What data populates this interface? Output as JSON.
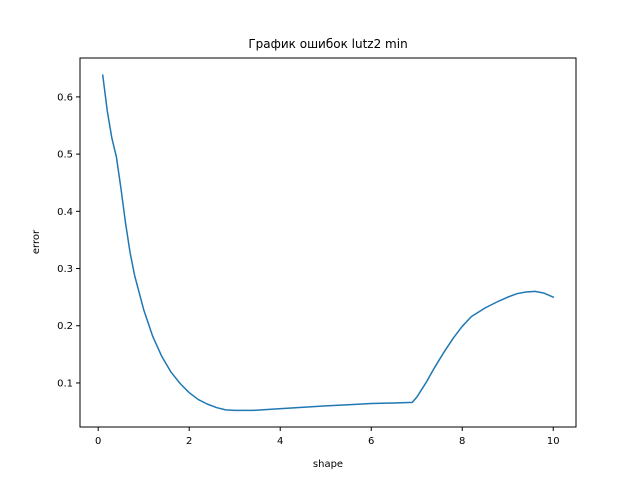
{
  "chart_data": {
    "type": "line",
    "title": "График ошибок lutz2 min",
    "xlabel": "shape",
    "ylabel": "error",
    "xlim": [
      -0.4,
      10.5
    ],
    "ylim": [
      0.023,
      0.668
    ],
    "xticks": [
      0,
      2,
      4,
      6,
      8,
      10
    ],
    "xtick_labels": [
      "0",
      "2",
      "4",
      "6",
      "8",
      "10"
    ],
    "yticks": [
      0.1,
      0.2,
      0.3,
      0.4,
      0.5,
      0.6
    ],
    "ytick_labels": [
      "0.1",
      "0.2",
      "0.3",
      "0.4",
      "0.5",
      "0.6"
    ],
    "grid": false,
    "series": [
      {
        "color": "#1f77b4",
        "x": [
          0.1,
          0.2,
          0.3,
          0.4,
          0.5,
          0.6,
          0.7,
          0.8,
          0.9,
          1.0,
          1.2,
          1.4,
          1.6,
          1.8,
          2.0,
          2.2,
          2.4,
          2.6,
          2.8,
          3.0,
          3.4,
          3.8,
          4.2,
          4.6,
          5.0,
          5.5,
          6.0,
          6.5,
          6.9,
          7.0,
          7.2,
          7.4,
          7.6,
          7.8,
          8.0,
          8.2,
          8.5,
          8.8,
          9.0,
          9.2,
          9.4,
          9.6,
          9.8,
          10.0
        ],
        "y": [
          0.638,
          0.575,
          0.528,
          0.495,
          0.44,
          0.38,
          0.328,
          0.288,
          0.258,
          0.228,
          0.181,
          0.146,
          0.119,
          0.099,
          0.083,
          0.071,
          0.063,
          0.057,
          0.053,
          0.052,
          0.052,
          0.054,
          0.056,
          0.058,
          0.06,
          0.062,
          0.064,
          0.065,
          0.066,
          0.075,
          0.1,
          0.128,
          0.154,
          0.178,
          0.199,
          0.216,
          0.231,
          0.243,
          0.25,
          0.256,
          0.259,
          0.26,
          0.257,
          0.25
        ]
      }
    ]
  }
}
